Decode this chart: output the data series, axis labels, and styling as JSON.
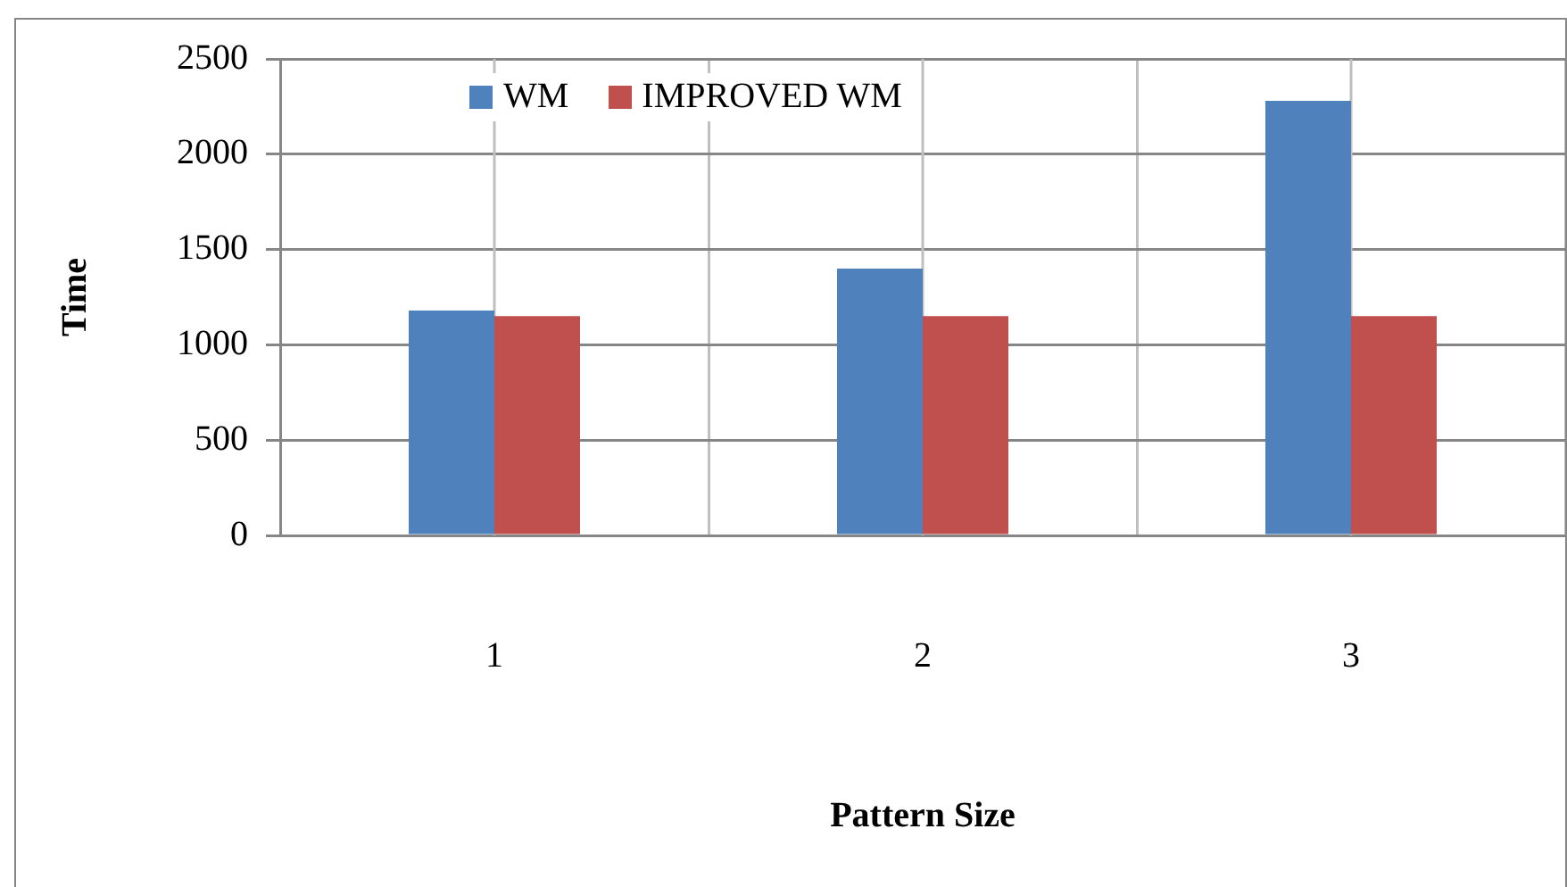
{
  "chart_data": {
    "type": "bar",
    "xlabel": "Pattern Size",
    "ylabel": "Time",
    "categories": [
      "1",
      "2",
      "3"
    ],
    "series": [
      {
        "name": "WM",
        "color": "#4f81bd",
        "values": [
          1180,
          1400,
          2280
        ]
      },
      {
        "name": "IMPROVED WM",
        "color": "#c0504d",
        "values": [
          1150,
          1150,
          1150
        ]
      }
    ],
    "ylim": [
      0,
      2500
    ],
    "yticks": [
      0,
      500,
      1000,
      1500,
      2000,
      2500
    ],
    "grid": true,
    "legend": "top left"
  }
}
